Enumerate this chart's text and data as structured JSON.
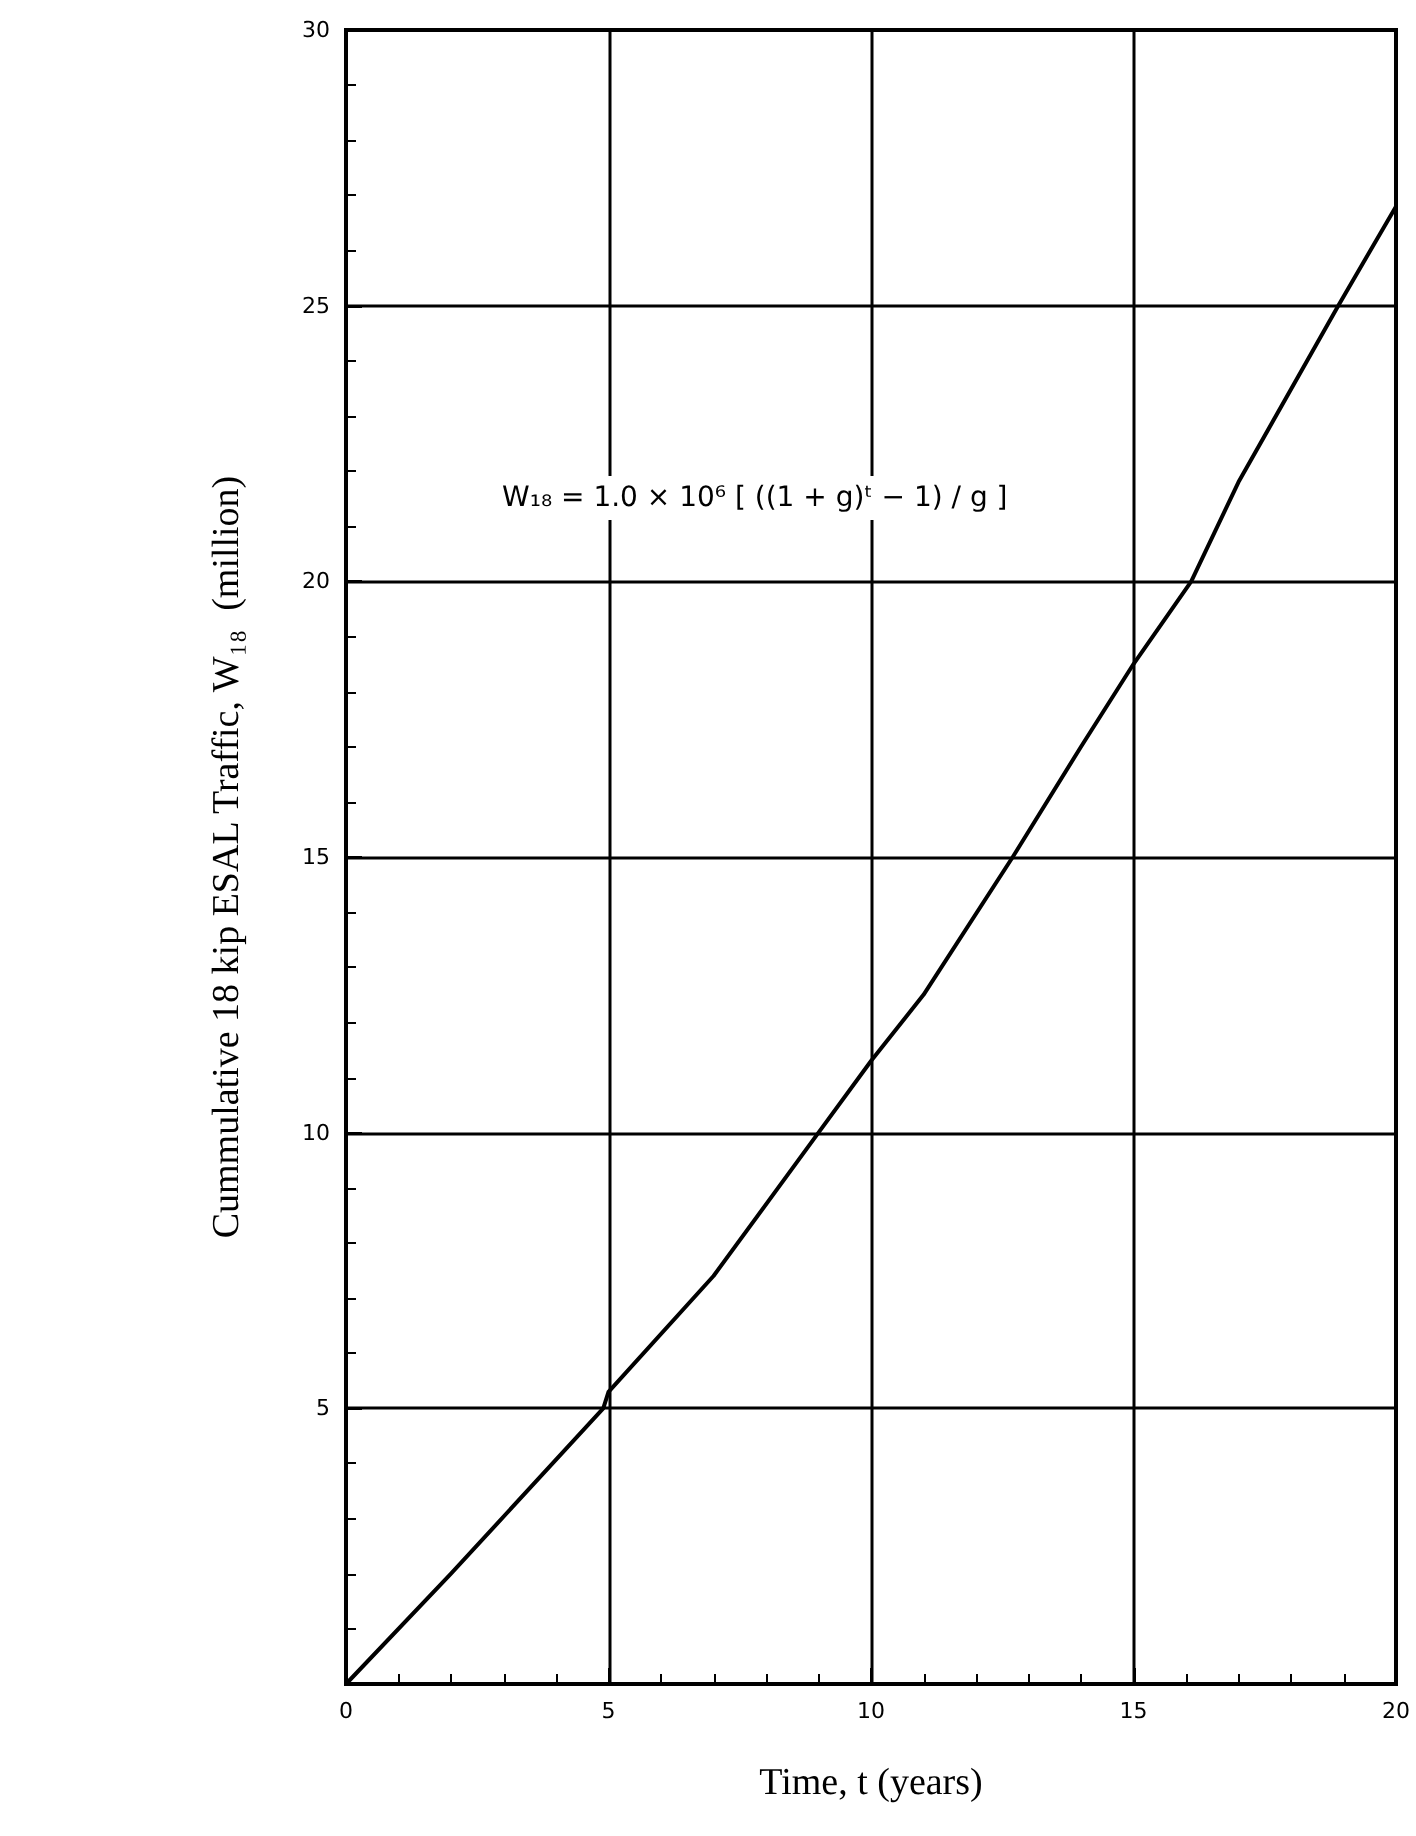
{
  "chart_data": {
    "type": "line",
    "xlabel": "Time, t (years)",
    "ylabel": "Cummulative 18 kip ESAL Traffic, W₁₈  (million)",
    "annotations": [
      "W₁₈ = 1.0 × 10⁶ [ ((1 + g)ᵗ − 1) / g ]"
    ],
    "x": [
      0,
      2,
      4.9,
      5,
      7,
      9,
      10,
      11,
      12.7,
      14,
      15,
      16.1,
      17,
      18.9,
      20
    ],
    "series": [
      {
        "color": "#000000",
        "values": [
          0,
          2,
          5,
          5.3,
          7.4,
          10,
          11.3,
          12.5,
          15,
          17,
          18.5,
          20,
          21.8,
          25,
          26.8
        ]
      }
    ],
    "xlim": [
      0,
      20
    ],
    "xticks": [
      0,
      5,
      10,
      15,
      20
    ],
    "ylim": [
      0,
      30
    ],
    "yticks": [
      {
        "value": 0,
        "label": null
      },
      5,
      10,
      15,
      20,
      25,
      30
    ],
    "grid": true,
    "marker": "none",
    "line_style": "solid"
  }
}
